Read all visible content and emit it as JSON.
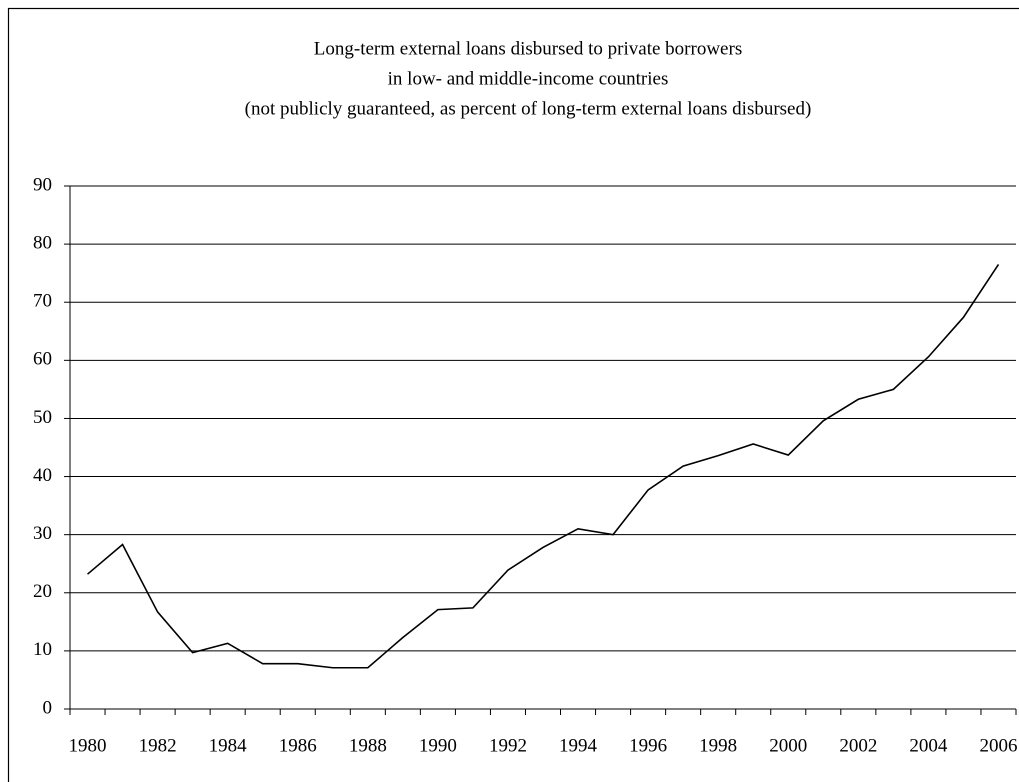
{
  "chart_data": {
    "type": "line",
    "title": [
      "Long-term external loans disbursed to private borrowers",
      "in low- and middle-income countries",
      "(not publicly guaranteed, as percent of long-term external loans disbursed)"
    ],
    "categories": [
      "1980",
      null,
      "1982",
      null,
      "1984",
      null,
      "1986",
      null,
      "1988",
      null,
      "1990",
      null,
      "1992",
      null,
      "1994",
      null,
      "1996",
      null,
      "1998",
      null,
      "2000",
      null,
      "2002",
      null,
      "2004",
      null,
      "2006"
    ],
    "values": [
      23.2,
      28.3,
      16.7,
      9.7,
      11.3,
      7.8,
      7.8,
      7.1,
      7.1,
      12.3,
      17.1,
      17.4,
      23.9,
      27.8,
      31.0,
      30.0,
      37.7,
      41.8,
      43.6,
      45.6,
      43.7,
      49.6,
      53.3,
      55.0,
      60.6,
      67.4,
      76.5
    ],
    "color": "#000000",
    "ylim": [
      0,
      90
    ],
    "yticks": [
      0,
      10,
      20,
      30,
      40,
      50,
      60,
      70,
      80,
      90
    ],
    "grid": true
  }
}
